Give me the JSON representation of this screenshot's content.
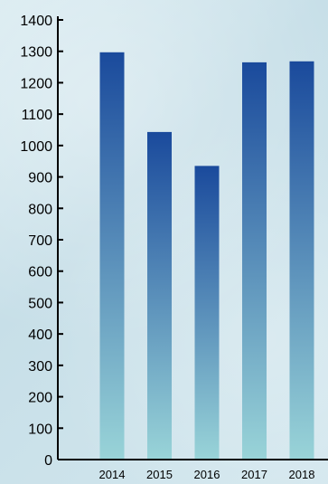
{
  "chart_data": {
    "type": "bar",
    "categories": [
      "2014",
      "2015",
      "2016",
      "2017",
      "2018"
    ],
    "values": [
      1297,
      1043,
      935,
      1265,
      1268
    ],
    "ylim": [
      0,
      1400
    ],
    "yticks": [
      0,
      100,
      200,
      300,
      400,
      500,
      600,
      700,
      800,
      900,
      1000,
      1100,
      1200,
      1300,
      1400
    ],
    "grid": false,
    "legend": "none",
    "bar_color_top": "#1a4a9c",
    "bar_color_bottom": "#99d4d8",
    "axis_color": "#000000"
  }
}
